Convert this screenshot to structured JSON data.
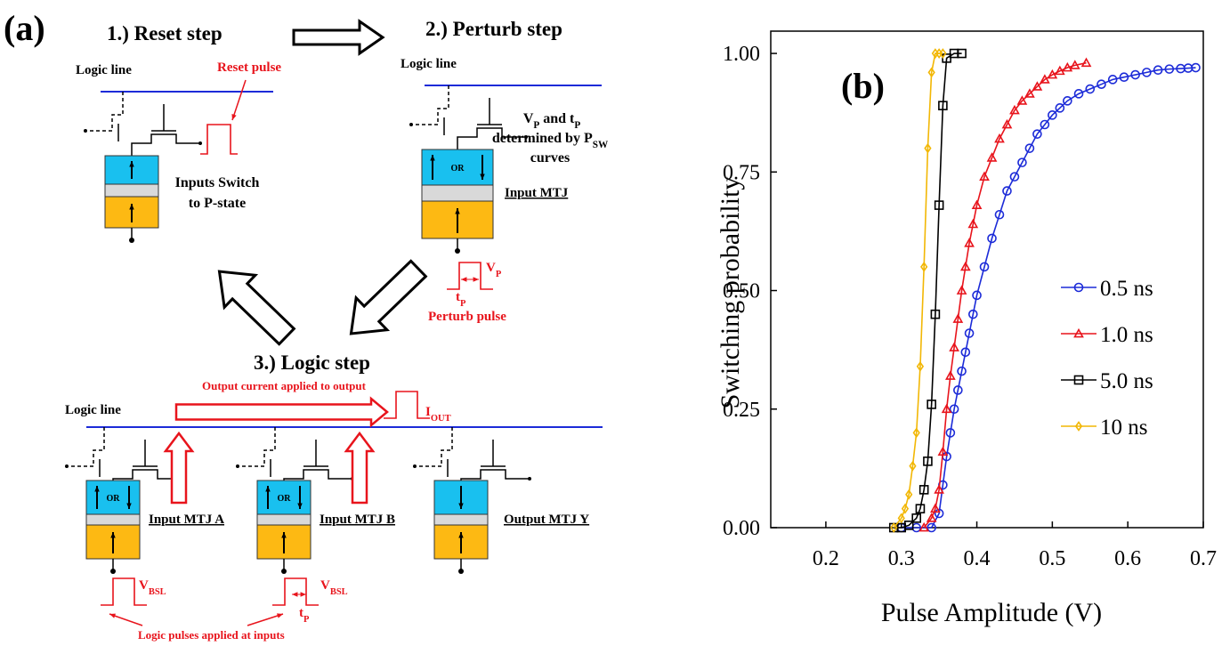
{
  "diagram": {
    "panel_label": "(a)",
    "reset": {
      "title": "1.) Reset step",
      "logic_line": "Logic line",
      "pulse": "Reset pulse",
      "note": [
        "Inputs Switch",
        "to P-state"
      ]
    },
    "perturb": {
      "title": "2.) Perturb step",
      "logic_line": "Logic line",
      "note": [
        [
          "V",
          "P",
          " and t",
          "P"
        ],
        [
          "determined by P",
          "SW"
        ],
        [
          "curves"
        ]
      ],
      "mtj": "Input MTJ",
      "or": "OR",
      "vp": [
        "V",
        "P"
      ],
      "tp": [
        "t",
        "P"
      ],
      "pulse": "Perturb pulse"
    },
    "logic": {
      "title": "3.) Logic step",
      "logic_line": "Logic line",
      "output_current": "Output current applied to output",
      "iout": [
        "I",
        "OUT"
      ],
      "mtj_a": "Input MTJ A",
      "mtj_b": "Input MTJ B",
      "mtj_y": "Output MTJ Y",
      "or": "OR",
      "vbsl": [
        "V",
        "BSL"
      ],
      "tp": [
        "t",
        "P"
      ],
      "pulses": "Logic pulses applied at inputs"
    }
  },
  "chart_data": {
    "type": "line",
    "panel_label": "(b)",
    "x_label": "Pulse Amplitude (V)",
    "y_label": "Switching probability",
    "xlim": [
      0.127,
      0.7
    ],
    "ylim": [
      0,
      1.047
    ],
    "xticks": [
      0.2,
      0.3,
      0.4,
      0.5,
      0.6,
      0.7
    ],
    "yticks": [
      {
        "value": 0,
        "label": "0.00"
      },
      {
        "value": 0.25,
        "label": "0.25"
      },
      {
        "value": 0.5,
        "label": "0.50"
      },
      {
        "value": 0.75,
        "label": "0.75"
      },
      {
        "value": 1,
        "label": "1.00"
      }
    ],
    "legend": "right",
    "series": [
      {
        "name": "0.5 ns",
        "color": "#1c2bd8",
        "marker": "circle",
        "x": [
          0.3,
          0.32,
          0.34,
          0.35,
          0.355,
          0.36,
          0.365,
          0.37,
          0.375,
          0.38,
          0.385,
          0.39,
          0.395,
          0.4,
          0.41,
          0.42,
          0.43,
          0.44,
          0.45,
          0.46,
          0.47,
          0.48,
          0.49,
          0.5,
          0.51,
          0.52,
          0.535,
          0.55,
          0.565,
          0.58,
          0.595,
          0.61,
          0.625,
          0.64,
          0.655,
          0.67,
          0.68,
          0.69
        ],
        "values": [
          0,
          0,
          0,
          0.03,
          0.09,
          0.15,
          0.2,
          0.25,
          0.29,
          0.33,
          0.37,
          0.41,
          0.45,
          0.49,
          0.55,
          0.61,
          0.66,
          0.71,
          0.74,
          0.77,
          0.8,
          0.83,
          0.85,
          0.87,
          0.885,
          0.9,
          0.915,
          0.925,
          0.935,
          0.945,
          0.95,
          0.955,
          0.96,
          0.965,
          0.967,
          0.968,
          0.969,
          0.97
        ]
      },
      {
        "name": "1.0 ns",
        "color": "#e8141c",
        "marker": "triangle",
        "x": [
          0.33,
          0.34,
          0.345,
          0.35,
          0.355,
          0.36,
          0.365,
          0.37,
          0.375,
          0.38,
          0.385,
          0.39,
          0.395,
          0.4,
          0.41,
          0.42,
          0.43,
          0.44,
          0.45,
          0.46,
          0.47,
          0.48,
          0.49,
          0.5,
          0.51,
          0.52,
          0.53,
          0.545
        ],
        "values": [
          0,
          0.02,
          0.04,
          0.08,
          0.16,
          0.25,
          0.32,
          0.38,
          0.44,
          0.5,
          0.55,
          0.6,
          0.64,
          0.68,
          0.74,
          0.78,
          0.82,
          0.85,
          0.88,
          0.9,
          0.915,
          0.93,
          0.945,
          0.955,
          0.963,
          0.97,
          0.975,
          0.98
        ]
      },
      {
        "name": "5.0 ns",
        "color": "#000000",
        "marker": "square",
        "x": [
          0.29,
          0.3,
          0.31,
          0.32,
          0.325,
          0.33,
          0.335,
          0.34,
          0.345,
          0.35,
          0.355,
          0.36,
          0.37,
          0.38
        ],
        "values": [
          0,
          0,
          0.005,
          0.02,
          0.04,
          0.08,
          0.14,
          0.26,
          0.45,
          0.68,
          0.89,
          0.99,
          1,
          1
        ]
      },
      {
        "name": "10 ns",
        "color": "#f2b705",
        "marker": "diamond",
        "x": [
          0.29,
          0.3,
          0.305,
          0.31,
          0.315,
          0.32,
          0.325,
          0.33,
          0.335,
          0.34,
          0.345,
          0.35,
          0.355
        ],
        "values": [
          0,
          0.02,
          0.04,
          0.07,
          0.13,
          0.2,
          0.34,
          0.55,
          0.8,
          0.96,
          1,
          1,
          1
        ]
      }
    ]
  }
}
